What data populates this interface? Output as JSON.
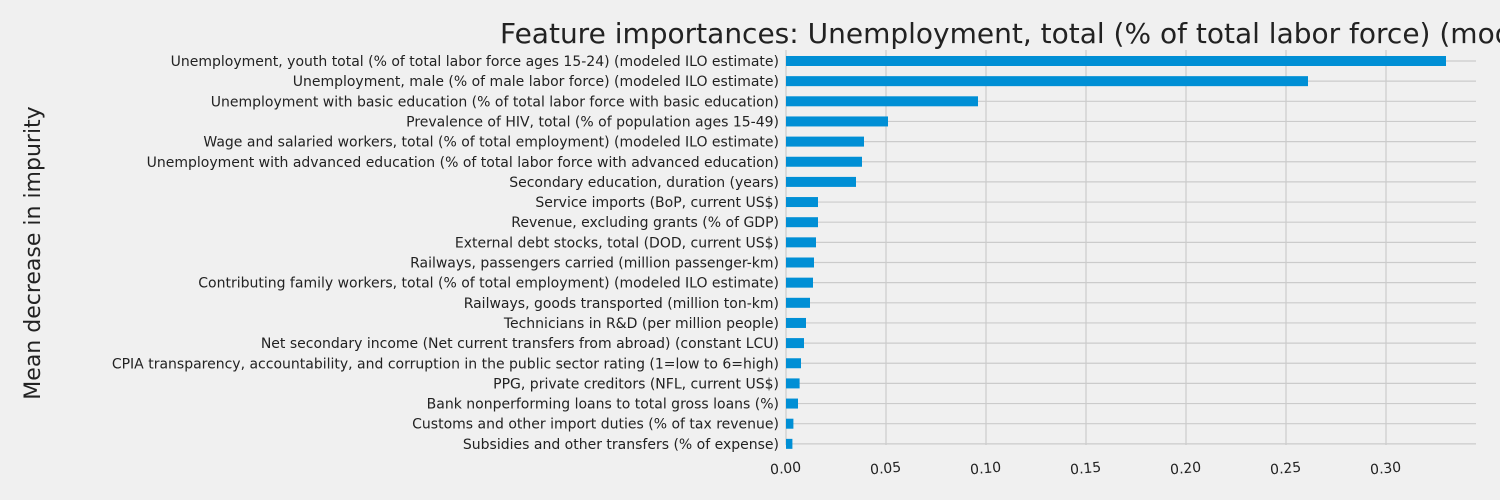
{
  "chart_data": {
    "type": "bar",
    "orientation": "horizontal",
    "title": "Feature importances: Unemployment, total (% of total labor force) (modeled ILO estimate)",
    "ylabel": "Mean decrease in impurity",
    "xlabel": "",
    "xlim": [
      0,
      0.345
    ],
    "xticks": [
      "0.00",
      "0.05",
      "0.10",
      "0.15",
      "0.20",
      "0.25",
      "0.30"
    ],
    "xtick_values": [
      0.0,
      0.05,
      0.1,
      0.15,
      0.2,
      0.25,
      0.3
    ],
    "grid": true,
    "bar_color": "#008fd5",
    "background_color": "#f0f0f0",
    "grid_color": "#cbcbcb",
    "categories": [
      "Unemployment, youth total (% of total labor force ages 15-24) (modeled ILO estimate)",
      "Unemployment, male (% of male labor force) (modeled ILO estimate)",
      "Unemployment with basic education (% of total labor force with basic education)",
      "Prevalence of HIV, total (% of population ages 15-49)",
      "Wage and salaried workers, total (% of total employment) (modeled ILO estimate)",
      "Unemployment with advanced education (% of total labor force with advanced education)",
      "Secondary education, duration (years)",
      "Service imports (BoP, current US$)",
      "Revenue, excluding grants (% of GDP)",
      "External debt stocks, total (DOD, current US$)",
      "Railways, passengers carried (million passenger-km)",
      "Contributing family workers, total (% of total employment) (modeled ILO estimate)",
      "Railways, goods transported (million ton-km)",
      "Technicians in R&D (per million people)",
      "Net secondary income (Net current transfers from abroad) (constant LCU)",
      "CPIA transparency, accountability, and corruption in the public sector rating (1=low to 6=high)",
      "PPG, private creditors (NFL, current US$)",
      "Bank nonperforming loans to total gross loans (%)",
      "Customs and other import duties (% of tax revenue)",
      "Subsidies and other transfers (% of expense)"
    ],
    "values": [
      0.33,
      0.261,
      0.096,
      0.051,
      0.039,
      0.038,
      0.035,
      0.016,
      0.016,
      0.015,
      0.014,
      0.0135,
      0.012,
      0.01,
      0.009,
      0.0075,
      0.0068,
      0.006,
      0.0037,
      0.0032
    ]
  }
}
